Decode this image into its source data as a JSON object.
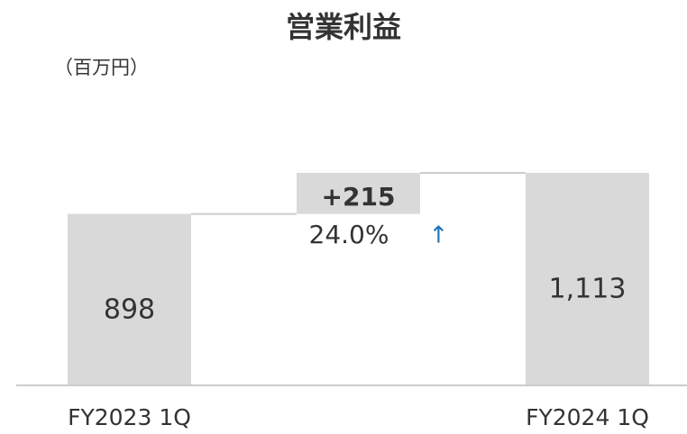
{
  "chart_data": {
    "type": "waterfall",
    "title": "営業利益",
    "unit_label": "（百万円）",
    "categories": [
      "FY2023 1Q",
      null,
      "FY2024 1Q"
    ],
    "values": [
      898,
      215,
      1113
    ],
    "value_labels": [
      "898",
      "+215",
      "1,113"
    ],
    "annotation": "24.0%",
    "annotation_arrow": "↑",
    "arrow_color": "#1f73b7",
    "color": "#d9d9d9"
  }
}
